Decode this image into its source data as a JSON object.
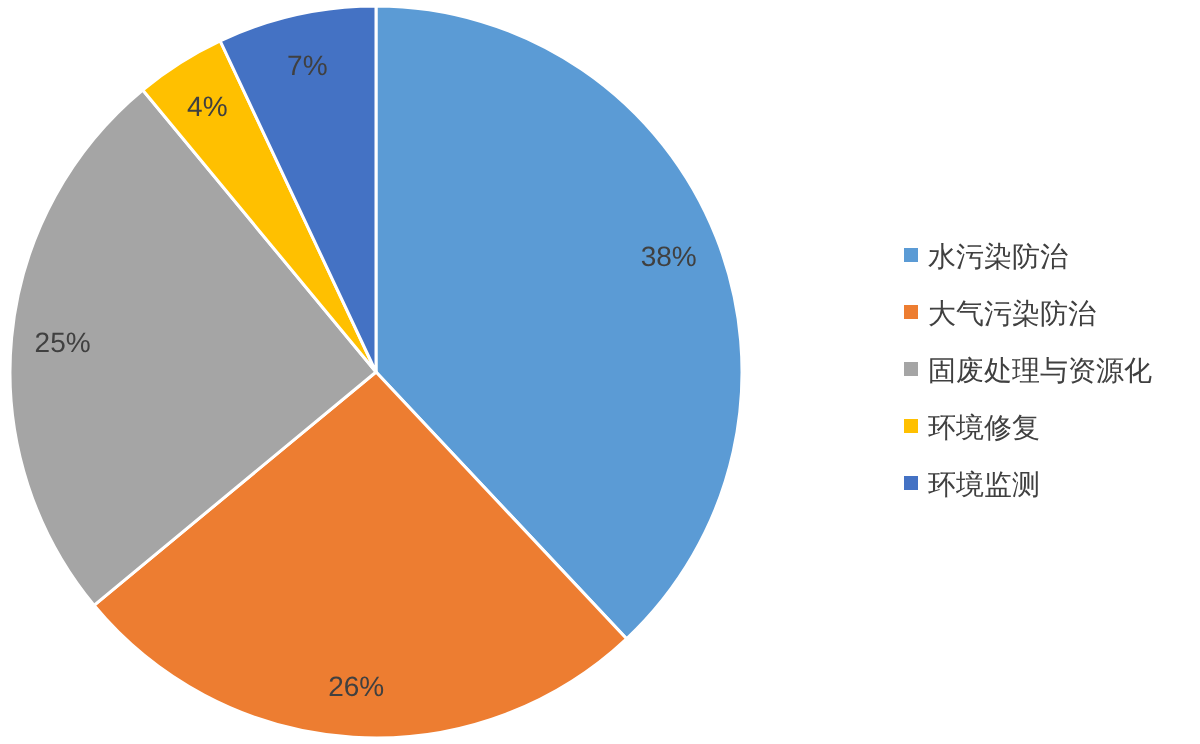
{
  "chart_data": {
    "type": "pie",
    "categories": [
      "水污染防治",
      "大气污染防治",
      "固废处理与资源化",
      "环境修复",
      "环境监测"
    ],
    "values": [
      38,
      26,
      25,
      4,
      7
    ],
    "colors": [
      "#5b9bd5",
      "#ed7d31",
      "#a5a5a5",
      "#ffc000",
      "#4472c4"
    ],
    "value_labels": [
      "38%",
      "26%",
      "25%",
      "4%",
      "7%"
    ],
    "legend": "right"
  }
}
